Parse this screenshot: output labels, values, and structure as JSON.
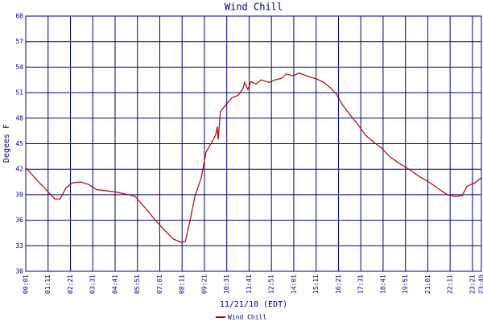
{
  "chart_data": {
    "type": "line",
    "title": "Wind Chill",
    "x_label": "11/21/10 (EDT)",
    "y_label": "Degees F",
    "xlim": [
      1,
      1429
    ],
    "ylim": [
      30,
      60
    ],
    "xticks": [
      {
        "value": 1,
        "label": "00:01"
      },
      {
        "value": 71,
        "label": "01:11"
      },
      {
        "value": 141,
        "label": "02:21"
      },
      {
        "value": 211,
        "label": "03:31"
      },
      {
        "value": 281,
        "label": "04:41"
      },
      {
        "value": 351,
        "label": "05:51"
      },
      {
        "value": 421,
        "label": "07:01"
      },
      {
        "value": 491,
        "label": "08:11"
      },
      {
        "value": 561,
        "label": "09:21"
      },
      {
        "value": 631,
        "label": "10:31"
      },
      {
        "value": 701,
        "label": "11:41"
      },
      {
        "value": 771,
        "label": "12:51"
      },
      {
        "value": 841,
        "label": "14:01"
      },
      {
        "value": 911,
        "label": "15:11"
      },
      {
        "value": 981,
        "label": "16:21"
      },
      {
        "value": 1051,
        "label": "17:31"
      },
      {
        "value": 1121,
        "label": "18:41"
      },
      {
        "value": 1191,
        "label": "19:51"
      },
      {
        "value": 1261,
        "label": "21:01"
      },
      {
        "value": 1331,
        "label": "22:11"
      },
      {
        "value": 1401,
        "label": "23:21"
      },
      {
        "value": 1429,
        "label": "23:49"
      }
    ],
    "yticks": [
      30,
      33,
      36,
      39,
      42,
      45,
      48,
      51,
      54,
      57,
      60
    ],
    "grid": true,
    "x": [
      1,
      34,
      72,
      92,
      109,
      127,
      147,
      173,
      198,
      223,
      248,
      286,
      324,
      344,
      374,
      412,
      437,
      463,
      488,
      501,
      516,
      531,
      551,
      566,
      581,
      596,
      601,
      604,
      611,
      627,
      647,
      667,
      682,
      687,
      697,
      707,
      723,
      738,
      763,
      783,
      803,
      818,
      839,
      859,
      879,
      894,
      914,
      935,
      955,
      975,
      990,
      995,
      1015,
      1041,
      1066,
      1091,
      1116,
      1141,
      1167,
      1202,
      1232,
      1268,
      1298,
      1323,
      1348,
      1369,
      1384,
      1409,
      1429
    ],
    "series": [
      {
        "name": "Wind Chill",
        "color": "#b00000",
        "values": [
          42.2,
          40.8,
          39.3,
          38.5,
          38.5,
          39.8,
          40.4,
          40.5,
          40.2,
          39.6,
          39.5,
          39.3,
          39.0,
          38.8,
          37.5,
          35.8,
          34.8,
          33.8,
          33.4,
          33.5,
          36.0,
          38.8,
          41.0,
          44.0,
          45.0,
          46.0,
          47.0,
          45.5,
          48.8,
          49.5,
          50.4,
          50.7,
          51.5,
          52.2,
          51.4,
          52.3,
          52.0,
          52.5,
          52.2,
          52.5,
          52.7,
          53.2,
          53.0,
          53.3,
          53.0,
          52.8,
          52.6,
          52.2,
          51.6,
          50.8,
          49.8,
          49.5,
          48.5,
          47.3,
          46.0,
          45.2,
          44.5,
          43.5,
          42.8,
          42.0,
          41.2,
          40.4,
          39.6,
          39.0,
          38.8,
          38.9,
          40.0,
          40.4,
          41.0
        ]
      }
    ]
  }
}
